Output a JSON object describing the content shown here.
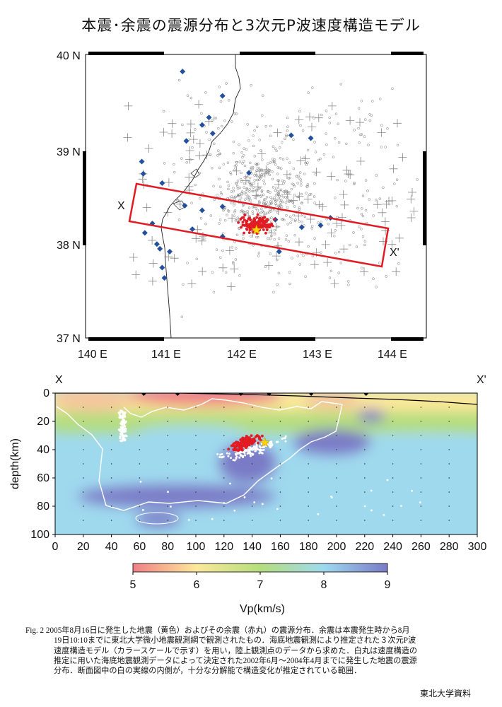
{
  "title": "本震･余震の震源分布と3次元P波速度構造モデル",
  "map": {
    "lat_labels": [
      "40 N",
      "39 N",
      "38 N",
      "37 N"
    ],
    "lon_labels": [
      "140 E",
      "141 E",
      "142 E",
      "143 E",
      "144 E"
    ],
    "xlim": [
      140,
      144.5
    ],
    "ylim": [
      37,
      40
    ],
    "profile_labels": {
      "start": "X",
      "end": "X'"
    },
    "profile_line": {
      "start": [
        140.5,
        38.45
      ],
      "end": [
        143.95,
        37.95
      ]
    },
    "mainshock": {
      "lon": 142.2,
      "lat": 38.15,
      "depth_km": 35,
      "color": "#ffd400"
    }
  },
  "chart_data": {
    "type": "heatmap",
    "xlabel": "",
    "ylabel": "depth(km)",
    "xlim": [
      0,
      300
    ],
    "ylim": [
      100,
      0
    ],
    "x_ticks": [
      0,
      20,
      40,
      60,
      80,
      100,
      120,
      140,
      160,
      180,
      200,
      220,
      240,
      260,
      280,
      300
    ],
    "y_ticks": [
      0,
      20,
      40,
      60,
      80,
      100
    ],
    "profile_labels": {
      "start": "X",
      "end": "X'"
    },
    "colorbar": {
      "label": "Vp(km/s)",
      "range": [
        5,
        9
      ],
      "ticks": [
        5,
        6,
        7,
        8,
        9
      ],
      "colors": [
        "#f07f86",
        "#fce89a",
        "#b5dd7e",
        "#9fd9ee",
        "#7a7ac6"
      ]
    },
    "mainshock": {
      "distance_km": 149,
      "depth_km": 35
    },
    "aftershock_cluster": {
      "distance_range_km": [
        110,
        160
      ],
      "depth_range_km": [
        20,
        50
      ]
    }
  },
  "caption": {
    "first_line": "Fig. 2 2005年8月16日に発生した地震（黄色）およびその余震（赤丸）の震源分布．余震は本震発生時から8月",
    "lines": [
      "19日10:10までに東北大学微小地震観測網で観測されたもの．海底地震観測により推定された３次元P波",
      "速度構造モデル（カラースケールで示す）を用い，陸上観測点のデータから求めた．白丸は速度構造の",
      "推定に用いた海底地震観測データによって決定された2002年6月〜2004年4月までに発生した地震の震源",
      "分布．断面図中の白の実線の内側が，十分な分解能で構造変化が推定されている範囲．"
    ]
  },
  "credit": "東北大学資料"
}
